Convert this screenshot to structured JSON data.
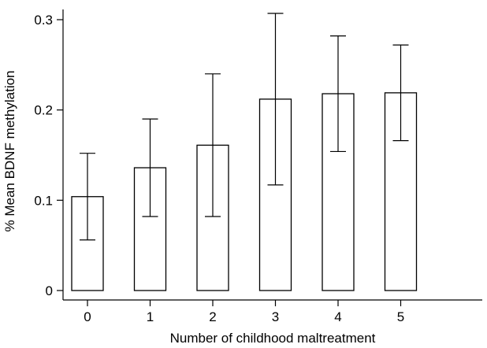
{
  "chart_data": {
    "type": "bar",
    "categories": [
      "0",
      "1",
      "2",
      "3",
      "4",
      "5"
    ],
    "values": [
      0.104,
      0.136,
      0.161,
      0.212,
      0.218,
      0.219
    ],
    "error_low": [
      0.056,
      0.082,
      0.082,
      0.117,
      0.154,
      0.166
    ],
    "error_high": [
      0.152,
      0.19,
      0.24,
      0.307,
      0.282,
      0.272
    ],
    "title": "",
    "xlabel": "Number of childhood maltreatment",
    "ylabel": "% Mean BDNF methylation",
    "ylim": [
      0,
      0.31
    ],
    "yticks": [
      0,
      0.1,
      0.2,
      0.3
    ],
    "ytick_labels": [
      "0",
      "0.1",
      "0.2",
      "0.3"
    ],
    "grid": false,
    "legend": "none"
  }
}
